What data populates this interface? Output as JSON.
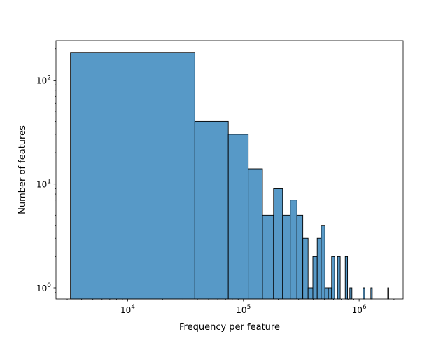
{
  "chart_data": {
    "type": "bar",
    "subtype": "histogram",
    "xscale": "log",
    "yscale": "log",
    "xlabel": "Frequency per feature",
    "ylabel": "Number of features",
    "xlim": [
      2400,
      2400000
    ],
    "ylim": [
      0.78,
      240
    ],
    "xticks": [
      {
        "value": 10000,
        "base": "10",
        "exp": "4"
      },
      {
        "value": 100000,
        "base": "10",
        "exp": "5"
      },
      {
        "value": 1000000,
        "base": "10",
        "exp": "6"
      }
    ],
    "yticks": [
      {
        "value": 1,
        "base": "10",
        "exp": "0"
      },
      {
        "value": 10,
        "base": "10",
        "exp": "1"
      },
      {
        "value": 100,
        "base": "10",
        "exp": "2"
      }
    ],
    "grid": false,
    "bar_color": "#5799c7",
    "edge_color": "#000000",
    "bins": [
      {
        "x0": 3200,
        "x1": 38000,
        "count": 185
      },
      {
        "x0": 38000,
        "x1": 74000,
        "count": 40
      },
      {
        "x0": 74000,
        "x1": 110000,
        "count": 30
      },
      {
        "x0": 110000,
        "x1": 146000,
        "count": 14
      },
      {
        "x0": 146000,
        "x1": 182000,
        "count": 5
      },
      {
        "x0": 182000,
        "x1": 218000,
        "count": 9
      },
      {
        "x0": 218000,
        "x1": 254000,
        "count": 5
      },
      {
        "x0": 254000,
        "x1": 290000,
        "count": 7
      },
      {
        "x0": 290000,
        "x1": 326000,
        "count": 5
      },
      {
        "x0": 326000,
        "x1": 362000,
        "count": 3
      },
      {
        "x0": 362000,
        "x1": 398000,
        "count": 1
      },
      {
        "x0": 398000,
        "x1": 434000,
        "count": 2
      },
      {
        "x0": 434000,
        "x1": 470000,
        "count": 3
      },
      {
        "x0": 470000,
        "x1": 506000,
        "count": 4
      },
      {
        "x0": 506000,
        "x1": 542000,
        "count": 1
      },
      {
        "x0": 542000,
        "x1": 578000,
        "count": 1
      },
      {
        "x0": 578000,
        "x1": 614000,
        "count": 2
      },
      {
        "x0": 650000,
        "x1": 686000,
        "count": 2
      },
      {
        "x0": 758000,
        "x1": 794000,
        "count": 2
      },
      {
        "x0": 830000,
        "x1": 866000,
        "count": 1
      },
      {
        "x0": 1082000,
        "x1": 1118000,
        "count": 1
      },
      {
        "x0": 1262000,
        "x1": 1298000,
        "count": 1
      },
      {
        "x0": 1766000,
        "x1": 1802000,
        "count": 1
      }
    ]
  }
}
